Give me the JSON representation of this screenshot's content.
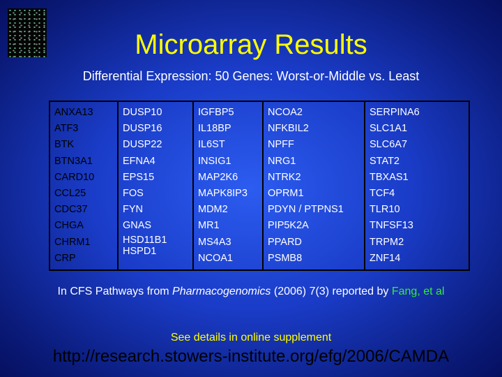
{
  "header": {
    "title": "Microarray Results",
    "subtitle": "Differential Expression:  50 Genes: Worst-or-Middle vs. Least"
  },
  "table": {
    "columns": [
      [
        "ANXA13",
        "ATF3",
        "BTK",
        "BTN3A1",
        "CARD10",
        "CCL25",
        "CDC37",
        "CHGA",
        "CHRM1",
        "CRP"
      ],
      [
        "DUSP10",
        "DUSP16",
        "DUSP22",
        "EFNA4",
        "EPS15",
        "FOS",
        "FYN",
        "GNAS",
        "HSD11B1",
        "HSPD1"
      ],
      [
        "IGFBP5",
        "IL18BP",
        "IL6ST",
        "INSIG1",
        "MAP2K6",
        "MAPK8IP3",
        "MDM2",
        "MR1",
        "MS4A3",
        "NCOA1"
      ],
      [
        "NCOA2",
        "NFKBIL2",
        "NPFF",
        "NRG1",
        "NTRK2",
        "OPRM1",
        "PDYN / PTPNS1",
        "PIP5K2A",
        "PPARD",
        "PSMB8"
      ],
      [
        "SERPINA6",
        "SLC1A1",
        "SLC6A7",
        "STAT2",
        "TBXAS1",
        "TCF4",
        "TLR10",
        "TNFSF13",
        "TRPM2",
        "ZNF14"
      ]
    ]
  },
  "citation": {
    "before": "In CFS Pathways from ",
    "journal": "Pharmacogenomics",
    "after": " (2006) 7(3)  reported by ",
    "authors": "Fang, et al"
  },
  "note": "See details in online supplement",
  "url": "http://research.stowers-institute.org/efg/2006/CAMDA"
}
